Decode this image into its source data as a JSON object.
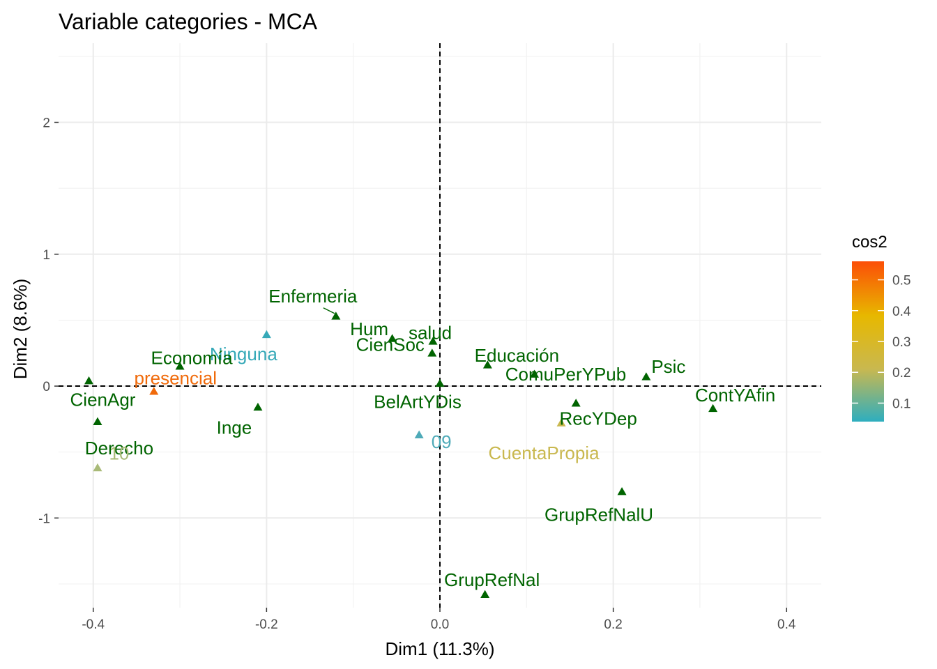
{
  "chart_data": {
    "type": "scatter",
    "title": "Variable categories - MCA",
    "xlabel": "Dim1 (11.3%)",
    "ylabel": "Dim2 (8.6%)",
    "xlim": [
      -0.44,
      0.44
    ],
    "ylim": [
      -1.68,
      2.6
    ],
    "x_ticks": [
      -0.4,
      -0.2,
      0.0,
      0.2,
      0.4
    ],
    "x_tick_labels": [
      "-0.4",
      "-0.2",
      "0.0",
      "0.2",
      "0.4"
    ],
    "y_ticks": [
      -1,
      0,
      1,
      2
    ],
    "y_tick_labels": [
      "-1",
      "0",
      "1",
      "2"
    ],
    "grid": true,
    "reference_lines": {
      "x": 0,
      "y": 0,
      "style": "dashed"
    },
    "color_scale": {
      "name": "cos2",
      "range": [
        0.04,
        0.56
      ],
      "ticks": [
        0.1,
        0.2,
        0.3,
        0.4,
        0.5
      ],
      "tick_labels": [
        "0.1",
        "0.2",
        "0.3",
        "0.4",
        "0.5"
      ],
      "colors": [
        "#2eaebf",
        "#c9b84f",
        "#e7b800",
        "#fc4e07"
      ]
    },
    "points": [
      {
        "label": "Enfermeria",
        "x": -0.12,
        "y": 0.53,
        "color": "#006400"
      },
      {
        "label": "Hum",
        "x": -0.055,
        "y": 0.36,
        "color": "#006400"
      },
      {
        "label": "salud",
        "x": -0.008,
        "y": 0.34,
        "color": "#006400"
      },
      {
        "label": "Ninguna",
        "x": -0.2,
        "y": 0.39,
        "color": "#36a9b8"
      },
      {
        "label": "Economía",
        "x": -0.3,
        "y": 0.15,
        "color": "#006400"
      },
      {
        "label": "CienSoc",
        "x": -0.009,
        "y": 0.25,
        "color": "#006400"
      },
      {
        "label": "Educación",
        "x": 0.055,
        "y": 0.16,
        "color": "#006400"
      },
      {
        "label": "Psic",
        "x": 0.238,
        "y": 0.07,
        "color": "#006400"
      },
      {
        "label": "ComuPerYPub",
        "x": 0.109,
        "y": 0.09,
        "color": "#006400"
      },
      {
        "label": "presencial",
        "x": -0.33,
        "y": -0.04,
        "color": "#f06a0a"
      },
      {
        "label": "CienAgr",
        "x": -0.405,
        "y": 0.04,
        "color": "#006400"
      },
      {
        "label": "BelArtYDis",
        "x": 0.0,
        "y": 0.02,
        "color": "#006400"
      },
      {
        "label": "ContYAfin",
        "x": 0.315,
        "y": -0.17,
        "color": "#006400"
      },
      {
        "label": "RecYDep",
        "x": 0.157,
        "y": -0.13,
        "color": "#006400"
      },
      {
        "label": "Inge",
        "x": -0.21,
        "y": -0.16,
        "color": "#006400"
      },
      {
        "label": "Derecho",
        "x": -0.395,
        "y": -0.27,
        "color": "#006400"
      },
      {
        "label": "09",
        "x": -0.024,
        "y": -0.37,
        "color": "#4eaab8"
      },
      {
        "label": "CuentaPropia",
        "x": 0.14,
        "y": -0.28,
        "color": "#c9b84f"
      },
      {
        "label": "10",
        "x": -0.395,
        "y": -0.62,
        "color": "#a9ba78"
      },
      {
        "label": "GrupRefNalU",
        "x": 0.21,
        "y": -0.8,
        "color": "#006400"
      },
      {
        "label": "GrupRefNal",
        "x": 0.052,
        "y": -1.58,
        "color": "#006400"
      }
    ]
  }
}
